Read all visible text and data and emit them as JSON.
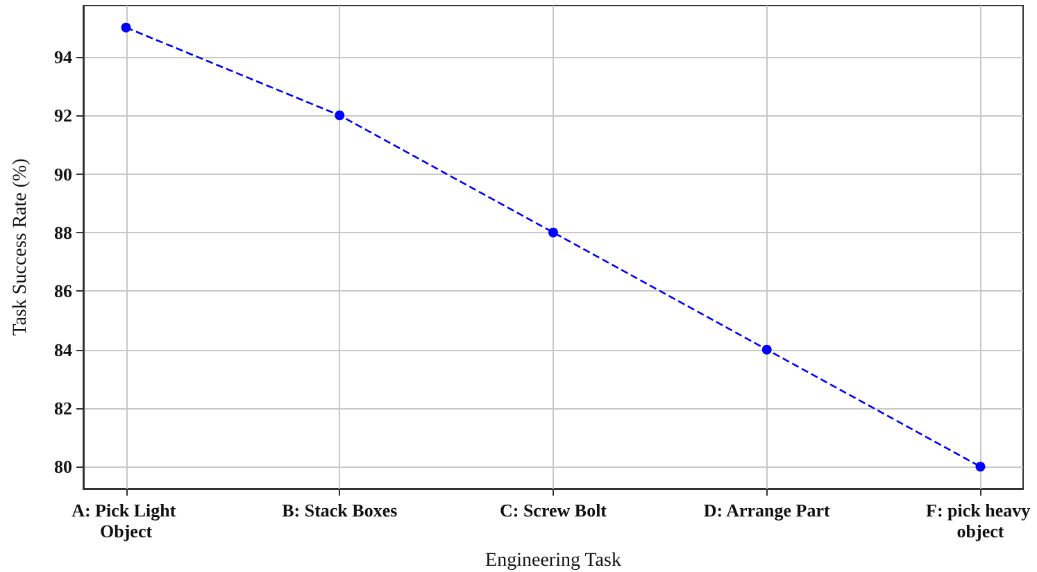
{
  "chart_data": {
    "type": "line",
    "xlabel": "Engineering Task",
    "ylabel": "Task Success Rate (%)",
    "categories": [
      "A: Pick Light Object",
      "B: Stack Boxes",
      "C: Screw Bolt",
      "D: Arrange Part",
      "F: pick heavy object"
    ],
    "series": [
      {
        "color": "#0000ff",
        "values": [
          95,
          92,
          88,
          84,
          80
        ]
      }
    ],
    "ylim": [
      79.25,
      95.75
    ],
    "yticks": [
      80,
      82,
      84,
      86,
      88,
      90,
      92,
      94
    ],
    "grid": true,
    "marker": "circle",
    "line_style": "dashed"
  }
}
